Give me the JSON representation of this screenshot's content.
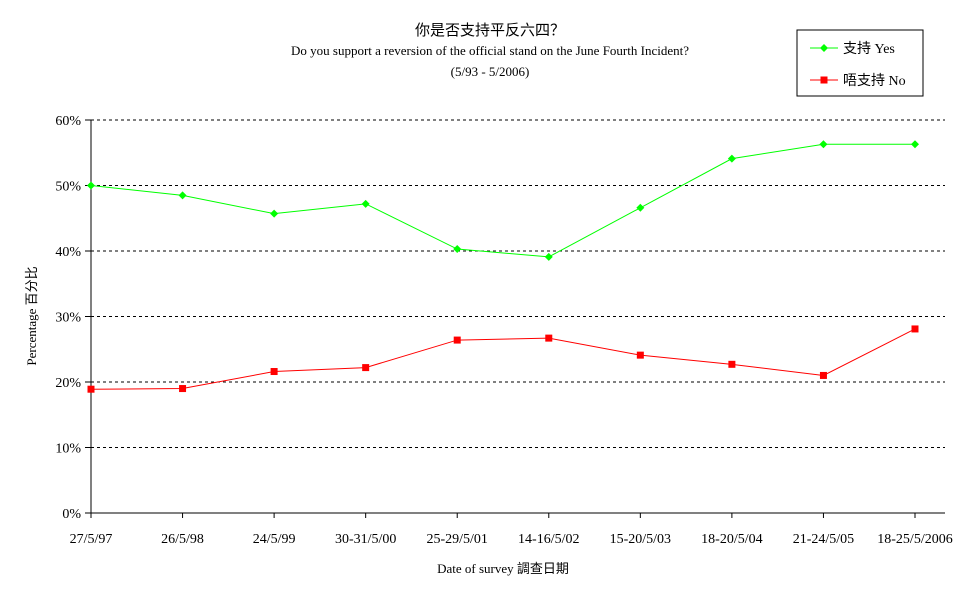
{
  "chart_data": {
    "type": "line",
    "title": "你是否支持平反六四？",
    "subtitle": "Do you support a reversion of the official stand on the June Fourth Incident?",
    "period": "(5/93 - 5/2006)",
    "xlabel": "Date of survey  調查日期",
    "ylabel": "Percentage  百分比",
    "categories": [
      "27/5/97",
      "26/5/98",
      "24/5/99",
      "30-31/5/00",
      "25-29/5/01",
      "14-16/5/02",
      "15-20/5/03",
      "18-20/5/04",
      "21-24/5/05",
      "18-25/5/2006"
    ],
    "ylim": [
      0,
      60
    ],
    "yticks": [
      0,
      10,
      20,
      30,
      40,
      50,
      60
    ],
    "ytick_labels": [
      "0%",
      "10%",
      "20%",
      "30%",
      "40%",
      "50%",
      "60%"
    ],
    "grid": "horizontal dashed",
    "legend_position": "top-right",
    "series": [
      {
        "name": "支持 Yes",
        "color": "#00ff00",
        "marker": "diamond",
        "values": [
          50.0,
          48.5,
          45.7,
          47.2,
          40.3,
          39.1,
          46.6,
          54.1,
          56.3,
          56.3
        ]
      },
      {
        "name": "唔支持 No",
        "color": "#ff0000",
        "marker": "square",
        "values": [
          18.9,
          19.0,
          21.6,
          22.2,
          26.4,
          26.7,
          24.1,
          22.7,
          21.0,
          28.1
        ]
      }
    ]
  }
}
